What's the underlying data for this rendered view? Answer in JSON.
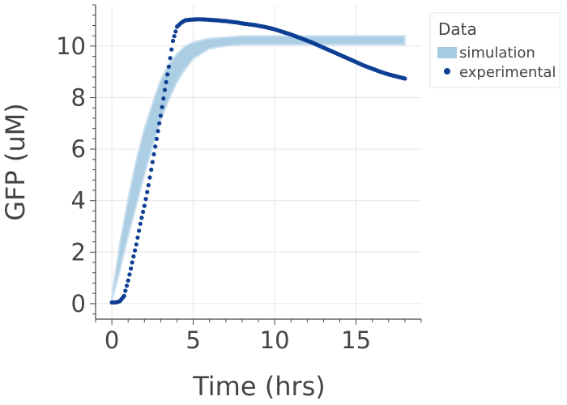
{
  "chart_data": {
    "type": "line",
    "xlabel": "Time (hrs)",
    "ylabel": "GFP (uM)",
    "xlim": [
      -1.0,
      19.0
    ],
    "ylim": [
      -0.6,
      11.6
    ],
    "xticks": [
      0,
      5,
      10,
      15
    ],
    "yticks": [
      0,
      2,
      4,
      6,
      8,
      10
    ],
    "xtick_labels": [
      "0",
      "5",
      "10",
      "15"
    ],
    "ytick_labels": [
      "0",
      "2",
      "4",
      "6",
      "8",
      "10"
    ],
    "grid": true,
    "legend": {
      "title": "Data",
      "placement": "right-outside-top",
      "entries": [
        "simulation",
        "experimental"
      ]
    },
    "colors": {
      "simulation": "#a6cbe3",
      "experimental": "#0d3f94",
      "grid": "#e6e6e6",
      "axis": "#444444"
    },
    "series": [
      {
        "name": "simulation",
        "kind": "band",
        "x": [
          0,
          0.5,
          1,
          1.5,
          2,
          2.5,
          3,
          3.5,
          4,
          4.5,
          5,
          6,
          7,
          8,
          9,
          10,
          12,
          14,
          16,
          18
        ],
        "lower": [
          0.1,
          1.3,
          2.6,
          3.8,
          5.0,
          6.1,
          7.1,
          7.9,
          8.6,
          9.1,
          9.5,
          9.9,
          10.0,
          10.05,
          10.05,
          10.05,
          10.05,
          10.05,
          10.05,
          10.05
        ],
        "upper": [
          0.3,
          2.4,
          4.1,
          5.6,
          6.8,
          7.8,
          8.7,
          9.3,
          9.7,
          10.0,
          10.15,
          10.3,
          10.35,
          10.4,
          10.4,
          10.4,
          10.4,
          10.4,
          10.4,
          10.4
        ]
      },
      {
        "name": "experimental",
        "kind": "scatter",
        "x": [
          0.0,
          0.25,
          0.5,
          0.75,
          1.0,
          1.25,
          1.5,
          1.75,
          2.0,
          2.25,
          2.5,
          2.75,
          3.0,
          3.25,
          3.5,
          3.75,
          4.0,
          4.25,
          4.5,
          4.75,
          5.0,
          5.25,
          5.5,
          5.75,
          6.0,
          6.25,
          6.5,
          6.75,
          7.0,
          7.25,
          7.5,
          7.75,
          8.0,
          8.25,
          8.5,
          8.75,
          9.0,
          9.25,
          9.5,
          9.75,
          10.0,
          10.25,
          10.5,
          10.75,
          11.0,
          11.25,
          11.5,
          11.75,
          12.0,
          12.25,
          12.5,
          12.75,
          13.0,
          13.25,
          13.5,
          13.75,
          14.0,
          14.25,
          14.5,
          14.75,
          15.0,
          15.25,
          15.5,
          15.75,
          16.0,
          16.25,
          16.5,
          16.75,
          17.0,
          17.25,
          17.5,
          17.75,
          18.0
        ],
        "y": [
          0.05,
          0.05,
          0.1,
          0.3,
          0.9,
          1.6,
          2.3,
          3.1,
          3.8,
          4.6,
          5.5,
          6.4,
          7.3,
          8.3,
          9.2,
          10.2,
          10.75,
          10.9,
          11.0,
          11.02,
          11.03,
          11.04,
          11.04,
          11.03,
          11.02,
          11.01,
          11.0,
          10.98,
          10.97,
          10.95,
          10.93,
          10.91,
          10.88,
          10.86,
          10.84,
          10.82,
          10.79,
          10.76,
          10.73,
          10.69,
          10.65,
          10.6,
          10.55,
          10.5,
          10.45,
          10.39,
          10.33,
          10.27,
          10.21,
          10.15,
          10.08,
          10.01,
          9.94,
          9.87,
          9.8,
          9.73,
          9.66,
          9.59,
          9.52,
          9.45,
          9.38,
          9.31,
          9.24,
          9.18,
          9.12,
          9.06,
          9.0,
          8.95,
          8.9,
          8.86,
          8.82,
          8.78,
          8.74
        ]
      }
    ]
  }
}
